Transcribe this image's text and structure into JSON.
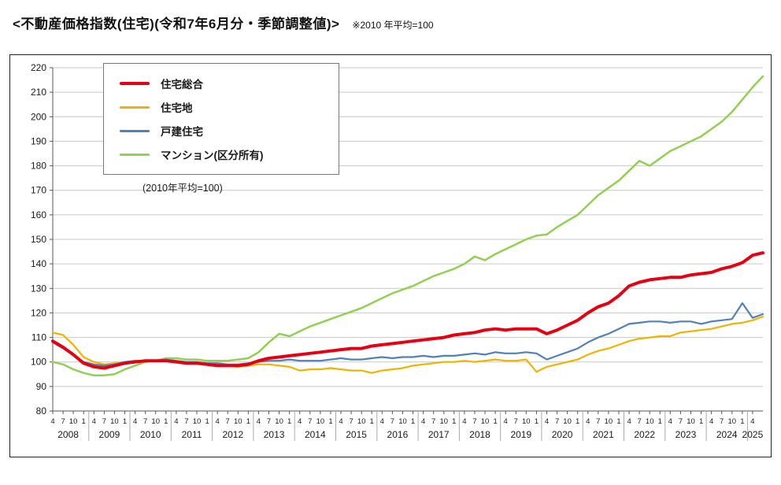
{
  "header": {
    "title": "<不動産価格指数(住宅)(令和7年6月分・季節調整値)>",
    "note": "※2010 年平均=100"
  },
  "chart_data": {
    "type": "line",
    "title": "不動産価格指数(住宅) 令和7年6月分・季節調整値",
    "legend_note": "(2010年平均=100)",
    "legend_position": "top-left-inside",
    "grid": true,
    "ylim": [
      80,
      220
    ],
    "y_tick_step": 10,
    "x_axis": {
      "tick_cycle": [
        "4",
        "7",
        "10",
        "1"
      ],
      "years": [
        "2008",
        "2009",
        "2010",
        "2011",
        "2012",
        "2013",
        "2014",
        "2015",
        "2016",
        "2017",
        "2018",
        "2019",
        "2020",
        "2021",
        "2022",
        "2023",
        "2024",
        "2025"
      ],
      "ticks_in_last_year": 1,
      "range_note": "monthly index, April 2008 - June 2025, values sampled quarterly"
    },
    "series": [
      {
        "name": "住宅総合",
        "color": "#e60012",
        "width": 4,
        "values": [
          108.5,
          106,
          103,
          99.5,
          98,
          97.5,
          98.5,
          99.5,
          100,
          100.5,
          100.5,
          100.5,
          100,
          99.5,
          99.5,
          99,
          98.5,
          98.5,
          98.5,
          99,
          100.5,
          101.5,
          102,
          102.5,
          103,
          103.5,
          104,
          104.5,
          105,
          105.5,
          105.5,
          106.5,
          107,
          107.5,
          108,
          108.5,
          109,
          109.5,
          110,
          111,
          111.5,
          112,
          113,
          113.5,
          113,
          113.5,
          113.5,
          113.5,
          111.5,
          113,
          115,
          117,
          120,
          122.5,
          124,
          127,
          131,
          132.5,
          133.5,
          134,
          134.5,
          134.5,
          135.5,
          136,
          136.5,
          138,
          139,
          140.5,
          143.5,
          144.5
        ]
      },
      {
        "name": "住宅地",
        "color": "#f2b200",
        "width": 2.2,
        "values": [
          112,
          111,
          107,
          102,
          100,
          99,
          99.5,
          100,
          100.5,
          100.5,
          100.5,
          100.5,
          100,
          99.5,
          99.5,
          99,
          98.5,
          98.5,
          98,
          98.5,
          99,
          99,
          98.5,
          98,
          96.5,
          97,
          97,
          97.5,
          97,
          96.5,
          96.5,
          95.5,
          96.5,
          97,
          97.5,
          98.5,
          99,
          99.5,
          100,
          100,
          100.5,
          100,
          100.5,
          101,
          100.5,
          100.5,
          101,
          96,
          98,
          99,
          100,
          101,
          103,
          104.5,
          105.5,
          107,
          108.5,
          109.5,
          110,
          110.5,
          110.5,
          112,
          112.5,
          113,
          113.5,
          114.5,
          115.5,
          116,
          117,
          118.5
        ]
      },
      {
        "name": "戸建住宅",
        "color": "#4f81bd",
        "width": 2.2,
        "values": [
          108,
          105.5,
          103,
          100,
          99,
          98.5,
          99,
          100,
          100.5,
          100.5,
          100.5,
          101,
          100.5,
          100,
          100,
          99.5,
          99.5,
          99,
          99,
          99.5,
          100,
          100.5,
          100.5,
          101,
          100.5,
          100.5,
          100.5,
          101,
          101.5,
          101,
          101,
          101.5,
          102,
          101.5,
          102,
          102,
          102.5,
          102,
          102.5,
          102.5,
          103,
          103.5,
          103,
          104,
          103.5,
          103.5,
          104,
          103.5,
          101,
          102.5,
          104,
          105.5,
          108,
          110,
          111.5,
          113.5,
          115.5,
          116,
          116.5,
          116.5,
          116,
          116.5,
          116.5,
          115.5,
          116.5,
          117,
          117.5,
          124,
          118,
          119.5
        ]
      },
      {
        "name": "マンション(区分所有)",
        "color": "#92d050",
        "width": 2.5,
        "values": [
          100,
          99,
          97,
          95.5,
          94.5,
          94.5,
          95,
          97,
          98.5,
          100,
          100.5,
          101.5,
          101.5,
          101,
          101,
          100.5,
          100.5,
          100.5,
          101,
          101.5,
          104,
          108,
          111.5,
          110.5,
          112.5,
          114.5,
          116,
          117.5,
          119,
          120.5,
          122,
          124,
          126,
          128,
          129.5,
          131,
          133,
          135,
          136.5,
          138,
          140,
          143,
          141.5,
          144,
          146,
          148,
          150,
          151.5,
          152,
          155,
          157.5,
          160,
          164,
          168,
          171,
          174,
          178,
          182,
          180,
          183,
          186,
          188,
          190,
          192,
          195,
          198,
          202,
          207,
          212,
          216.5
        ]
      }
    ]
  }
}
